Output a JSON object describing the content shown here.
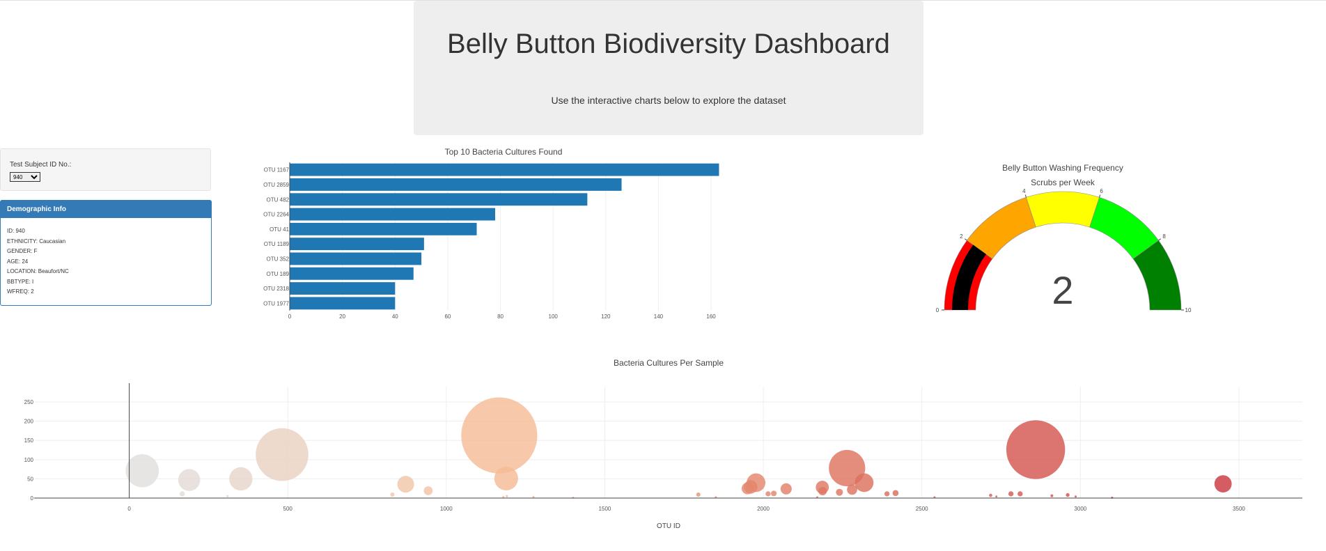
{
  "header": {
    "title": "Belly Button Biodiversity Dashboard",
    "subtitle": "Use the interactive charts below to explore the dataset"
  },
  "selector": {
    "label": "Test Subject ID No.:",
    "selected": "940"
  },
  "demographics": {
    "heading": "Demographic Info",
    "rows": [
      "ID: 940",
      "ETHNICITY: Caucasian",
      "GENDER: F",
      "AGE: 24",
      "LOCATION: Beaufort/NC",
      "BBTYPE: I",
      "WFREQ: 2"
    ]
  },
  "chart_data": [
    {
      "type": "bar",
      "orientation": "horizontal",
      "title": "Top 10 Bacteria Cultures Found",
      "categories": [
        "OTU 1167",
        "OTU 2859",
        "OTU 482",
        "OTU 2264",
        "OTU 41",
        "OTU 1189",
        "OTU 352",
        "OTU 189",
        "OTU 2318",
        "OTU 1977"
      ],
      "values": [
        163,
        126,
        113,
        78,
        71,
        51,
        50,
        47,
        40,
        40
      ],
      "xlim": [
        0,
        165
      ],
      "xticks": [
        0,
        20,
        40,
        60,
        80,
        100,
        120,
        140,
        160
      ],
      "grid": true,
      "color": "#1f77b4"
    },
    {
      "type": "gauge",
      "title": "Belly Button Washing Frequency",
      "subtitle": "Scrubs per Week",
      "value": 2,
      "range": [
        0,
        10
      ],
      "ticks": [
        0,
        2,
        4,
        6,
        8,
        10
      ],
      "bar_color": "#000000",
      "steps": [
        {
          "range": [
            0,
            2
          ],
          "color": "#ff0000"
        },
        {
          "range": [
            2,
            4
          ],
          "color": "#ffa500"
        },
        {
          "range": [
            4,
            6
          ],
          "color": "#ffff00"
        },
        {
          "range": [
            6,
            8
          ],
          "color": "#00ff00"
        },
        {
          "range": [
            8,
            10
          ],
          "color": "#008000"
        }
      ]
    },
    {
      "type": "scatter",
      "mode": "bubble",
      "title": "Bacteria Cultures Per Sample",
      "xlabel": "OTU ID",
      "ylabel": "",
      "xlim": [
        -300,
        3700
      ],
      "ylim": [
        0,
        290
      ],
      "xticks": [
        0,
        500,
        1000,
        1500,
        2000,
        2500,
        3000,
        3500
      ],
      "yticks": [
        0,
        50,
        100,
        150,
        200,
        250
      ],
      "grid": true,
      "colorscale": "Earth",
      "points": [
        {
          "x": 41,
          "y": 71
        },
        {
          "x": 189,
          "y": 47
        },
        {
          "x": 352,
          "y": 50
        },
        {
          "x": 482,
          "y": 113
        },
        {
          "x": 1167,
          "y": 163
        },
        {
          "x": 1189,
          "y": 51
        },
        {
          "x": 2264,
          "y": 78
        },
        {
          "x": 2859,
          "y": 126
        },
        {
          "x": 1977,
          "y": 40
        },
        {
          "x": 2318,
          "y": 40
        },
        {
          "x": 872,
          "y": 36
        },
        {
          "x": 3450,
          "y": 37
        },
        {
          "x": 1960,
          "y": 29
        },
        {
          "x": 1950,
          "y": 25
        },
        {
          "x": 2186,
          "y": 28
        },
        {
          "x": 2072,
          "y": 24
        },
        {
          "x": 2280,
          "y": 22
        },
        {
          "x": 943,
          "y": 19
        },
        {
          "x": 2187,
          "y": 18
        },
        {
          "x": 2240,
          "y": 15
        },
        {
          "x": 2417,
          "y": 13
        },
        {
          "x": 2033,
          "y": 12
        },
        {
          "x": 2015,
          "y": 11
        },
        {
          "x": 2390,
          "y": 11
        },
        {
          "x": 2781,
          "y": 11
        },
        {
          "x": 2810,
          "y": 11
        },
        {
          "x": 2960,
          "y": 8
        },
        {
          "x": 167,
          "y": 11
        },
        {
          "x": 1795,
          "y": 9
        },
        {
          "x": 830,
          "y": 9
        },
        {
          "x": 2717,
          "y": 7
        },
        {
          "x": 2910,
          "y": 6
        },
        {
          "x": 2735,
          "y": 4
        },
        {
          "x": 2985,
          "y": 4
        },
        {
          "x": 310,
          "y": 5
        },
        {
          "x": 1191,
          "y": 5
        },
        {
          "x": 1180,
          "y": 3
        },
        {
          "x": 1275,
          "y": 3
        },
        {
          "x": 1850,
          "y": 2
        },
        {
          "x": 2170,
          "y": 2
        },
        {
          "x": 2540,
          "y": 2
        },
        {
          "x": 1400,
          "y": 1
        },
        {
          "x": 3100,
          "y": 1
        }
      ]
    }
  ]
}
